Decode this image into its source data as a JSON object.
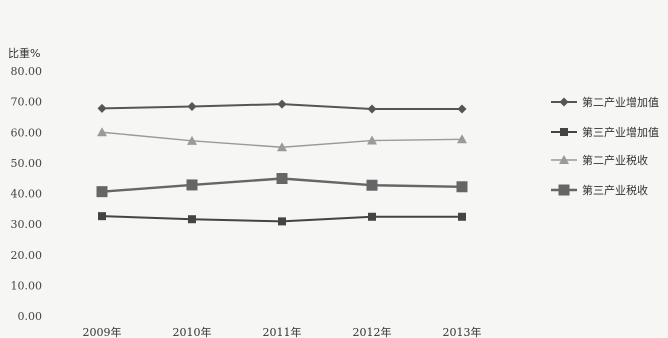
{
  "chart_data": {
    "type": "line",
    "ylabel": "比重%",
    "ylim": [
      0,
      80
    ],
    "y_ticks": [
      "0.00",
      "10.00",
      "20.00",
      "30.00",
      "40.00",
      "50.00",
      "60.00",
      "70.00",
      "80.00"
    ],
    "categories": [
      "2009年",
      "2010年",
      "2011年",
      "2012年",
      "2013年"
    ],
    "grid": false,
    "legend_position": "right",
    "series": [
      {
        "name": "第二产业增加值",
        "values": [
          67.8,
          68.4,
          69.2,
          67.6,
          67.6
        ],
        "color": "#555555",
        "marker": "diamond"
      },
      {
        "name": "第三产业增加值",
        "values": [
          32.6,
          31.6,
          30.9,
          32.4,
          32.4
        ],
        "color": "#444444",
        "marker": "square"
      },
      {
        "name": "第二产业税收",
        "values": [
          60.0,
          57.2,
          55.1,
          57.3,
          57.7
        ],
        "color": "#9a9a9a",
        "marker": "triangle"
      },
      {
        "name": "第三产业税收",
        "values": [
          40.6,
          42.8,
          44.9,
          42.7,
          42.2
        ],
        "color": "#666666",
        "marker": "bigsquare"
      }
    ]
  }
}
